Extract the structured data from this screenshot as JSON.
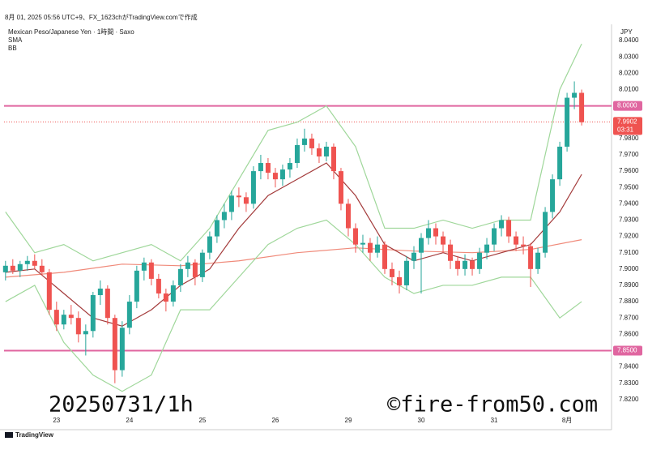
{
  "header": {
    "caption": "8月 01, 2025 05:56 UTC+9、FX_1623chがTradingView.comで作成",
    "footer": "TradingView"
  },
  "chart_data": {
    "type": "candlestick",
    "title": "Mexican Peso/Japanese Yen · 1時間 · Saxo",
    "indicators": [
      "SMA",
      "BB"
    ],
    "currency": "JPY",
    "annotations": [
      "20250731/1h",
      "©fire-from50.com"
    ],
    "up_color": "#26a69a",
    "down_color": "#ef5350",
    "xlim": [
      -0.2,
      83.1
    ],
    "ylim": [
      7.804,
      8.05
    ],
    "xticks": [
      {
        "value": 7,
        "label": "23"
      },
      {
        "value": 17,
        "label": "24"
      },
      {
        "value": 27,
        "label": "25"
      },
      {
        "value": 37,
        "label": "26"
      },
      {
        "value": 47,
        "label": "29"
      },
      {
        "value": 57,
        "label": "30"
      },
      {
        "value": 67,
        "label": "31"
      },
      {
        "value": 77,
        "label": "8月"
      }
    ],
    "yticks": [
      {
        "value": 8.04,
        "label": "8.0400"
      },
      {
        "value": 8.03,
        "label": "8.0300"
      },
      {
        "value": 8.02,
        "label": "8.0200"
      },
      {
        "value": 8.01,
        "label": "8.0100"
      },
      {
        "value": 7.98,
        "label": "7.9800"
      },
      {
        "value": 7.97,
        "label": "7.9700"
      },
      {
        "value": 7.96,
        "label": "7.9600"
      },
      {
        "value": 7.95,
        "label": "7.9500"
      },
      {
        "value": 7.94,
        "label": "7.9400"
      },
      {
        "value": 7.93,
        "label": "7.9300"
      },
      {
        "value": 7.92,
        "label": "7.9200"
      },
      {
        "value": 7.91,
        "label": "7.9100"
      },
      {
        "value": 7.9,
        "label": "7.9000"
      },
      {
        "value": 7.89,
        "label": "7.8900"
      },
      {
        "value": 7.88,
        "label": "7.8800"
      },
      {
        "value": 7.87,
        "label": "7.8700"
      },
      {
        "value": 7.86,
        "label": "7.8600"
      },
      {
        "value": 7.84,
        "label": "7.8400"
      },
      {
        "value": 7.83,
        "label": "7.8300"
      },
      {
        "value": 7.82,
        "label": "7.8200"
      }
    ],
    "grid": false,
    "levels": [
      {
        "value": 8,
        "label": "8.0000",
        "color": "#e066a0"
      },
      {
        "value": 7.85,
        "label": "7.8500",
        "color": "#e066a0"
      }
    ],
    "last_price": {
      "value": 7.9902,
      "label": "7.9902",
      "countdown": "03:31",
      "color": "#ef5350"
    },
    "candles": [
      [
        7.898,
        7.905,
        7.893,
        7.902
      ],
      [
        7.902,
        7.906,
        7.897,
        7.899
      ],
      [
        7.899,
        7.905,
        7.895,
        7.903
      ],
      [
        7.903,
        7.908,
        7.899,
        7.905
      ],
      [
        7.905,
        7.909,
        7.9,
        7.902
      ],
      [
        7.902,
        7.906,
        7.896,
        7.898
      ],
      [
        7.898,
        7.9,
        7.872,
        7.875
      ],
      [
        7.875,
        7.88,
        7.862,
        7.866
      ],
      [
        7.866,
        7.875,
        7.863,
        7.872
      ],
      [
        7.872,
        7.878,
        7.866,
        7.87
      ],
      [
        7.87,
        7.874,
        7.855,
        7.86
      ],
      [
        7.86,
        7.866,
        7.847,
        7.862
      ],
      [
        7.862,
        7.886,
        7.858,
        7.884
      ],
      [
        7.884,
        7.893,
        7.878,
        7.888
      ],
      [
        7.888,
        7.89,
        7.866,
        7.87
      ],
      [
        7.87,
        7.872,
        7.83,
        7.838
      ],
      [
        7.838,
        7.868,
        7.834,
        7.864
      ],
      [
        7.864,
        7.884,
        7.86,
        7.88
      ],
      [
        7.88,
        7.902,
        7.876,
        7.899
      ],
      [
        7.899,
        7.907,
        7.893,
        7.904
      ],
      [
        7.904,
        7.906,
        7.89,
        7.894
      ],
      [
        7.894,
        7.897,
        7.882,
        7.885
      ],
      [
        7.885,
        7.888,
        7.874,
        7.88
      ],
      [
        7.88,
        7.893,
        7.877,
        7.89
      ],
      [
        7.89,
        7.903,
        7.886,
        7.9
      ],
      [
        7.9,
        7.908,
        7.895,
        7.904
      ],
      [
        7.904,
        7.906,
        7.89,
        7.895
      ],
      [
        7.895,
        7.912,
        7.892,
        7.91
      ],
      [
        7.91,
        7.923,
        7.906,
        7.92
      ],
      [
        7.92,
        7.933,
        7.916,
        7.93
      ],
      [
        7.93,
        7.94,
        7.925,
        7.935
      ],
      [
        7.935,
        7.948,
        7.93,
        7.945
      ],
      [
        7.945,
        7.95,
        7.938,
        7.944
      ],
      [
        7.944,
        7.947,
        7.935,
        7.94
      ],
      [
        7.94,
        7.963,
        7.937,
        7.96
      ],
      [
        7.96,
        7.97,
        7.955,
        7.965
      ],
      [
        7.965,
        7.968,
        7.955,
        7.959
      ],
      [
        7.959,
        7.962,
        7.95,
        7.955
      ],
      [
        7.955,
        7.964,
        7.951,
        7.961
      ],
      [
        7.961,
        7.968,
        7.956,
        7.965
      ],
      [
        7.965,
        7.98,
        7.962,
        7.976
      ],
      [
        7.976,
        7.986,
        7.972,
        7.98
      ],
      [
        7.98,
        7.983,
        7.97,
        7.974
      ],
      [
        7.974,
        7.977,
        7.965,
        7.969
      ],
      [
        7.969,
        7.978,
        7.966,
        7.975
      ],
      [
        7.975,
        7.977,
        7.955,
        7.96
      ],
      [
        7.96,
        7.962,
        7.936,
        7.94
      ],
      [
        7.94,
        7.943,
        7.92,
        7.925
      ],
      [
        7.925,
        7.928,
        7.91,
        7.915
      ],
      [
        7.915,
        7.921,
        7.91,
        7.916
      ],
      [
        7.916,
        7.919,
        7.905,
        7.91
      ],
      [
        7.91,
        7.92,
        7.907,
        7.915
      ],
      [
        7.915,
        7.917,
        7.897,
        7.9
      ],
      [
        7.9,
        7.904,
        7.89,
        7.895
      ],
      [
        7.895,
        7.899,
        7.885,
        7.89
      ],
      [
        7.89,
        7.908,
        7.887,
        7.905
      ],
      [
        7.905,
        7.914,
        7.9,
        7.91
      ],
      [
        7.91,
        7.922,
        7.885,
        7.919
      ],
      [
        7.919,
        7.93,
        7.915,
        7.925
      ],
      [
        7.925,
        7.928,
        7.915,
        7.92
      ],
      [
        7.92,
        7.923,
        7.91,
        7.915
      ],
      [
        7.915,
        7.918,
        7.9,
        7.905
      ],
      [
        7.905,
        7.908,
        7.896,
        7.9
      ],
      [
        7.9,
        7.909,
        7.896,
        7.905
      ],
      [
        7.905,
        7.907,
        7.896,
        7.9
      ],
      [
        7.9,
        7.913,
        7.897,
        7.91
      ],
      [
        7.91,
        7.919,
        7.906,
        7.915
      ],
      [
        7.915,
        7.928,
        7.911,
        7.925
      ],
      [
        7.925,
        7.933,
        7.92,
        7.93
      ],
      [
        7.93,
        7.932,
        7.916,
        7.92
      ],
      [
        7.92,
        7.923,
        7.911,
        7.915
      ],
      [
        7.915,
        7.92,
        7.909,
        7.914
      ],
      [
        7.914,
        7.916,
        7.889,
        7.9
      ],
      [
        7.9,
        7.913,
        7.897,
        7.91
      ],
      [
        7.91,
        7.938,
        7.907,
        7.935
      ],
      [
        7.935,
        7.958,
        7.931,
        7.955
      ],
      [
        7.955,
        7.978,
        7.951,
        7.975
      ],
      [
        7.975,
        8.008,
        7.972,
        8.005
      ],
      [
        8.005,
        8.015,
        7.998,
        8.008
      ],
      [
        8.008,
        8.01,
        7.988,
        7.99
      ]
    ],
    "lines": [
      {
        "color": "#f08a7a",
        "x": [
          0,
          8,
          16,
          24,
          32,
          40,
          48,
          56,
          64,
          72,
          79
        ],
        "values": [
          7.895,
          7.898,
          7.903,
          7.902,
          7.905,
          7.91,
          7.913,
          7.911,
          7.91,
          7.912,
          7.918
        ]
      },
      {
        "color": "#9fd79a",
        "x": [
          0,
          4,
          8,
          12,
          16,
          20,
          24,
          28,
          32,
          36,
          40,
          44,
          48,
          52,
          56,
          60,
          64,
          68,
          72,
          76,
          79
        ],
        "values": [
          7.935,
          7.91,
          7.915,
          7.905,
          7.91,
          7.915,
          7.905,
          7.925,
          7.955,
          7.985,
          7.99,
          8.0,
          7.975,
          7.925,
          7.925,
          7.93,
          7.925,
          7.93,
          7.93,
          8.01,
          8.038
        ]
      },
      {
        "color": "#9fd79a",
        "x": [
          0,
          4,
          8,
          12,
          16,
          20,
          24,
          28,
          32,
          36,
          40,
          44,
          48,
          52,
          56,
          60,
          64,
          68,
          72,
          76,
          79
        ],
        "values": [
          7.88,
          7.89,
          7.855,
          7.835,
          7.825,
          7.835,
          7.875,
          7.875,
          7.895,
          7.915,
          7.925,
          7.93,
          7.915,
          7.895,
          7.885,
          7.89,
          7.89,
          7.895,
          7.895,
          7.87,
          7.88
        ]
      },
      {
        "color": "#a33a3a",
        "x": [
          0,
          4,
          8,
          12,
          16,
          20,
          24,
          28,
          32,
          36,
          40,
          44,
          48,
          52,
          56,
          60,
          64,
          68,
          72,
          76,
          79
        ],
        "values": [
          7.898,
          7.9,
          7.885,
          7.87,
          7.865,
          7.875,
          7.89,
          7.9,
          7.925,
          7.945,
          7.955,
          7.965,
          7.945,
          7.915,
          7.905,
          7.91,
          7.905,
          7.91,
          7.915,
          7.935,
          7.958
        ]
      }
    ]
  }
}
